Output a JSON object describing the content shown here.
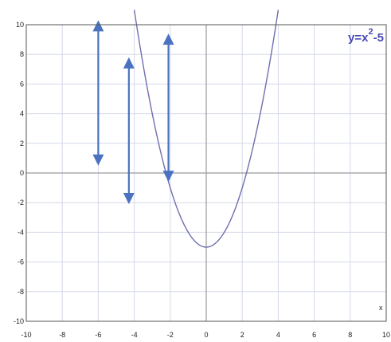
{
  "chart_data": {
    "type": "line",
    "title": "",
    "xlabel": "x",
    "ylabel": "",
    "xlim": [
      -10,
      10
    ],
    "ylim": [
      -10,
      10
    ],
    "x_ticks": [
      -10,
      -8,
      -6,
      -4,
      -2,
      0,
      2,
      4,
      6,
      8,
      10
    ],
    "y_ticks": [
      -10,
      -8,
      -6,
      -4,
      -2,
      0,
      2,
      4,
      6,
      8,
      10
    ],
    "grid": true,
    "equation": {
      "base": "y=x",
      "exponent": "2",
      "tail": "-5"
    },
    "series": [
      {
        "function": "x^2-5",
        "x": [
          -4,
          -3.5,
          -3,
          -2.5,
          -2,
          -1.5,
          -1,
          -0.5,
          0,
          0.5,
          1,
          1.5,
          2,
          2.5,
          3,
          3.5,
          4
        ],
        "y": [
          11,
          7.25,
          4,
          1.25,
          -1,
          -2.75,
          -4,
          -4.75,
          -5,
          -4.75,
          -4,
          -2.75,
          -1,
          1.25,
          4,
          7.25,
          11
        ],
        "color": "#6f6fb0"
      }
    ],
    "annotations": [
      {
        "type": "double-arrow",
        "x": -6,
        "y_from": 10.3,
        "y_to": 0.5
      },
      {
        "type": "double-arrow",
        "x": -4.3,
        "y_from": 7.8,
        "y_to": -2.1
      },
      {
        "type": "double-arrow",
        "x": -2.1,
        "y_from": 9.4,
        "y_to": -0.6
      }
    ],
    "colors": {
      "curve": "#6f6fb0",
      "arrow": "#4a72c0",
      "equation": "#4a4ab8",
      "grid": "#d6d8e8",
      "axis": "#9a9a9a",
      "frame": "#555555"
    }
  }
}
